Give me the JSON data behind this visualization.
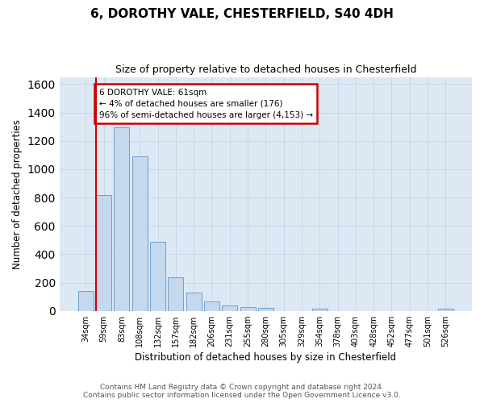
{
  "title": "6, DOROTHY VALE, CHESTERFIELD, S40 4DH",
  "subtitle": "Size of property relative to detached houses in Chesterfield",
  "xlabel": "Distribution of detached houses by size in Chesterfield",
  "ylabel": "Number of detached properties",
  "bar_color": "#c5d8ee",
  "bar_edge_color": "#6ca0cc",
  "grid_color": "#c8d4e4",
  "background_color": "#dde8f5",
  "annotation_box_edge_color": "#cc0000",
  "annotation_line_color": "#cc0000",
  "annotation_text_line1": "6 DOROTHY VALE: 61sqm",
  "annotation_text_line2": "← 4% of detached houses are smaller (176)",
  "annotation_text_line3": "96% of semi-detached houses are larger (4,153) →",
  "categories": [
    "34sqm",
    "59sqm",
    "83sqm",
    "108sqm",
    "132sqm",
    "157sqm",
    "182sqm",
    "206sqm",
    "231sqm",
    "255sqm",
    "280sqm",
    "305sqm",
    "329sqm",
    "354sqm",
    "378sqm",
    "403sqm",
    "428sqm",
    "452sqm",
    "477sqm",
    "501sqm",
    "526sqm"
  ],
  "values": [
    140,
    820,
    1295,
    1090,
    490,
    235,
    130,
    68,
    40,
    28,
    20,
    0,
    0,
    15,
    0,
    0,
    0,
    0,
    0,
    0,
    15
  ],
  "ylim_max": 1650,
  "yticks": [
    0,
    200,
    400,
    600,
    800,
    1000,
    1200,
    1400,
    1600
  ],
  "vline_bar_index": 1,
  "footer_line1": "Contains HM Land Registry data © Crown copyright and database right 2024.",
  "footer_line2": "Contains public sector information licensed under the Open Government Licence v3.0."
}
